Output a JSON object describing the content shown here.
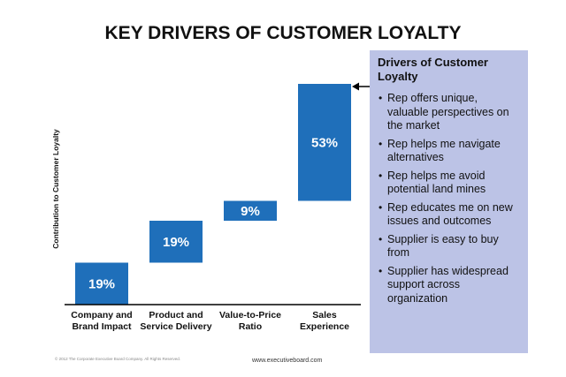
{
  "title": "KEY DRIVERS OF CUSTOMER LOYALTY",
  "chart_data": {
    "type": "bar",
    "subtype": "waterfall",
    "title": "KEY DRIVERS OF CUSTOMER LOYALTY",
    "ylabel": "Contribution to Customer Loyalty",
    "xlabel": "",
    "categories": [
      "Company and Brand Impact",
      "Product and Service Delivery",
      "Value-to-Price Ratio",
      "Sales Experience"
    ],
    "category_lines": [
      [
        "Company and",
        "Brand Impact"
      ],
      [
        "Product and",
        "Service Delivery"
      ],
      [
        "Value-to-Price",
        "Ratio"
      ],
      [
        "Sales",
        "Experience"
      ]
    ],
    "values": [
      19,
      19,
      9,
      53
    ],
    "data_labels": [
      "19%",
      "19%",
      "9%",
      "53%"
    ],
    "ylim": [
      0,
      100
    ],
    "grid": false,
    "color": "#1f6fba"
  },
  "panel": {
    "title": "Drivers of Customer Loyalty",
    "items": [
      "Rep offers unique, valuable perspectives on the market",
      "Rep helps me navigate alternatives",
      "Rep helps me avoid potential land mines",
      "Rep educates me on new issues and outcomes",
      "Supplier is easy to buy from",
      "Supplier has widespread support across organization"
    ],
    "background": "#bcc3e6"
  },
  "footer": {
    "copyright": "© 2012 The Corporate Executive Board Company. All Rights Reserved.",
    "url": "www.executiveboard.com"
  }
}
